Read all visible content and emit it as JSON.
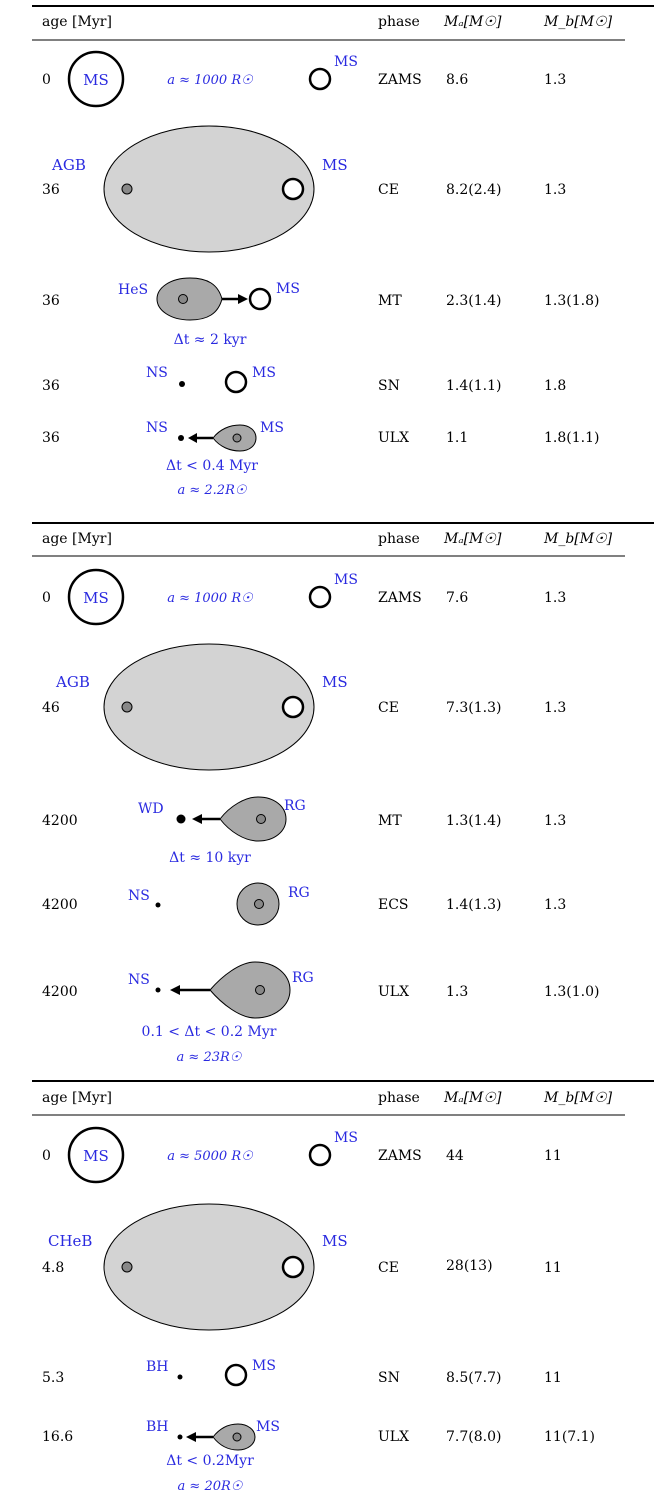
{
  "colors": {
    "label": "#2a2ae0",
    "text": "#000000",
    "envelope_fill": "#d3d3d3",
    "lobe_fill": "#a9a9a9",
    "core_fill": "#888888"
  },
  "panels": [
    {
      "header": {
        "age": "age [Myr]",
        "phase": "phase",
        "ma": "Mₐ[M☉]",
        "mb": "M_b[M☉]"
      },
      "rows": [
        {
          "age": "0",
          "phase": "ZAMS",
          "ma": "8.6",
          "mb": "1.3",
          "labels": {
            "left": "MS",
            "right": "MS",
            "sep": "a ≈ 1000 R☉"
          }
        },
        {
          "age": "36",
          "phase": "CE",
          "ma": "8.2(2.4)",
          "mb": "1.3",
          "labels": {
            "left": "AGB",
            "right": "MS"
          }
        },
        {
          "age": "36",
          "phase": "MT",
          "ma": "2.3(1.4)",
          "mb": "1.3(1.8)",
          "labels": {
            "left": "HeS",
            "right": "MS",
            "note1": "Δt ≈ 2 kyr"
          }
        },
        {
          "age": "36",
          "phase": "SN",
          "ma": "1.4(1.1)",
          "mb": "1.8",
          "labels": {
            "left": "NS",
            "right": "MS"
          }
        },
        {
          "age": "36",
          "phase": "ULX",
          "ma": "1.1",
          "mb": "1.8(1.1)",
          "labels": {
            "left": "NS",
            "right": "MS",
            "note1": "Δt < 0.4 Myr",
            "note2": "a ≈ 2.2R☉"
          }
        }
      ]
    },
    {
      "header": {
        "age": "age [Myr]",
        "phase": "phase",
        "ma": "Mₐ[M☉]",
        "mb": "M_b[M☉]"
      },
      "rows": [
        {
          "age": "0",
          "phase": "ZAMS",
          "ma": "7.6",
          "mb": "1.3",
          "labels": {
            "left": "MS",
            "right": "MS",
            "sep": "a ≈ 1000 R☉"
          }
        },
        {
          "age": "46",
          "phase": "CE",
          "ma": "7.3(1.3)",
          "mb": "1.3",
          "labels": {
            "left": "AGB",
            "right": "MS"
          }
        },
        {
          "age": "4200",
          "phase": "MT",
          "ma": "1.3(1.4)",
          "mb": "1.3",
          "labels": {
            "left": "WD",
            "right": "RG",
            "note1": "Δt ≈ 10 kyr"
          }
        },
        {
          "age": "4200",
          "phase": "ECS",
          "ma": "1.4(1.3)",
          "mb": "1.3",
          "labels": {
            "left": "NS",
            "right": "RG"
          }
        },
        {
          "age": "4200",
          "phase": "ULX",
          "ma": "1.3",
          "mb": "1.3(1.0)",
          "labels": {
            "left": "NS",
            "right": "RG",
            "note1": "0.1 < Δt < 0.2 Myr",
            "note2": "a ≈ 23R☉"
          }
        }
      ]
    },
    {
      "header": {
        "age": "age [Myr]",
        "phase": "phase",
        "ma": "Mₐ[M☉]",
        "mb": "M_b[M☉]"
      },
      "rows": [
        {
          "age": "0",
          "phase": "ZAMS",
          "ma": "44",
          "mb": "11",
          "labels": {
            "left": "MS",
            "right": "MS",
            "sep": "a ≈ 5000 R☉"
          }
        },
        {
          "age": "4.8",
          "phase": "CE",
          "ma": "28(13)",
          "mb": "11",
          "labels": {
            "left": "CHeB",
            "right": "MS"
          }
        },
        {
          "age": "5.3",
          "phase": "SN",
          "ma": "8.5(7.7)",
          "mb": "11",
          "labels": {
            "left": "BH",
            "right": "MS"
          }
        },
        {
          "age": "16.6",
          "phase": "ULX",
          "ma": "7.7(8.0)",
          "mb": "11(7.1)",
          "labels": {
            "left": "BH",
            "right": "MS",
            "note1": "Δt < 0.2Myr",
            "note2": "a ≈ 20R☉"
          }
        }
      ]
    }
  ]
}
